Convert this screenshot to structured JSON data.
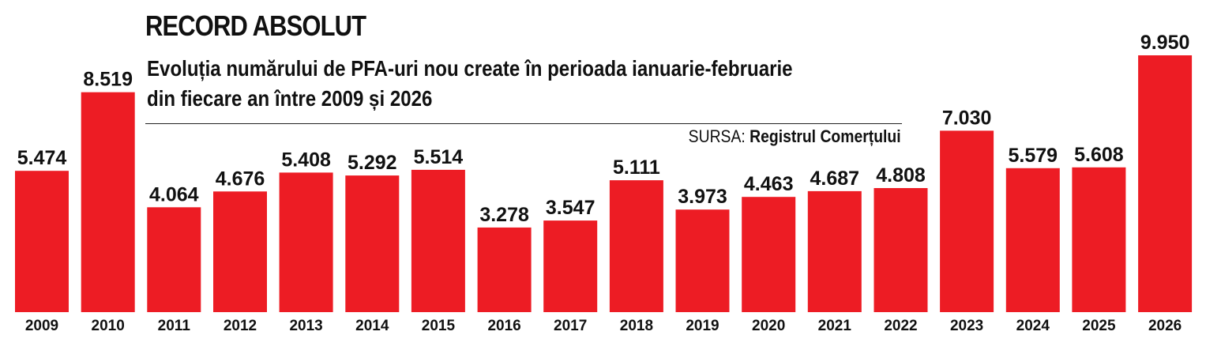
{
  "chart_data": {
    "type": "bar",
    "title": "RECORD ABSOLUT",
    "subtitle_lines": [
      "Evoluția numărului de PFA-uri nou create în perioada ianuarie-februarie",
      "din fiecare an între 2009 și 2026"
    ],
    "source_label": "SURSA:",
    "source_value": "Registrul Comerțului",
    "categories": [
      "2009",
      "2010",
      "2011",
      "2012",
      "2013",
      "2014",
      "2015",
      "2016",
      "2017",
      "2018",
      "2019",
      "2020",
      "2021",
      "2022",
      "2023",
      "2024",
      "2025",
      "2026"
    ],
    "values": [
      5474,
      8519,
      4064,
      4676,
      5408,
      5292,
      5514,
      3278,
      3547,
      5111,
      3973,
      4463,
      4687,
      4808,
      7030,
      5579,
      5608,
      9950
    ],
    "value_labels": [
      "5.474",
      "8.519",
      "4.064",
      "4.676",
      "5.408",
      "5.292",
      "5.514",
      "3.278",
      "3.547",
      "5.111",
      "3.973",
      "4.463",
      "4.687",
      "4.808",
      "7.030",
      "5.579",
      "5.608",
      "9.950"
    ],
    "ylim": [
      0,
      10000
    ],
    "xlabel": "",
    "ylabel": "",
    "grid": false,
    "colors": {
      "bar": "#ED1C24",
      "text": "#111111"
    }
  }
}
